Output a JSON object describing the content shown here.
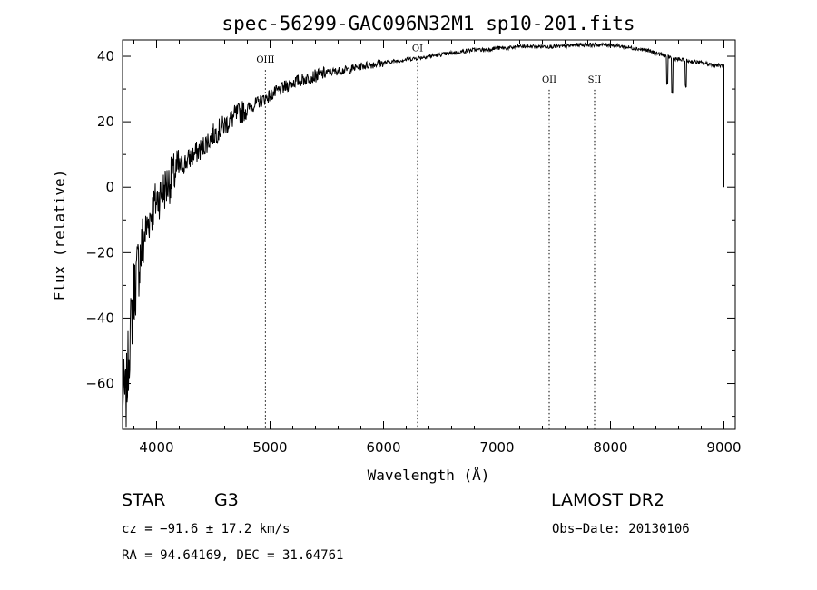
{
  "chart_data": {
    "type": "line",
    "title": "spec-56299-GAC096N32M1_sp10-201.fits",
    "xlabel": "Wavelength (Å)",
    "ylabel": "Flux (relative)",
    "xlim": [
      3700,
      9100
    ],
    "ylim": [
      -74,
      45
    ],
    "xticks": [
      4000,
      5000,
      6000,
      7000,
      8000,
      9000
    ],
    "xtick_labels": [
      "4000",
      "5000",
      "6000",
      "7000",
      "8000",
      "9000"
    ],
    "yticks": [
      -60,
      -40,
      -20,
      0,
      20,
      40
    ],
    "ytick_labels": [
      "−60",
      "−40",
      "−20",
      "0",
      "20",
      "40"
    ],
    "grid": false,
    "series": [
      {
        "x": [
          3700,
          3730,
          3760,
          3800,
          3850,
          3900,
          3950,
          4000,
          4100,
          4200,
          4300,
          4400,
          4500,
          4600,
          4700,
          4800,
          4900,
          5000,
          5100,
          5200,
          5300,
          5400,
          5500,
          5600,
          5700,
          5800,
          5900,
          6000,
          6100,
          6200,
          6300,
          6400,
          6500,
          6600,
          6700,
          6800,
          6900,
          7000,
          7100,
          7200,
          7300,
          7400,
          7500,
          7600,
          7700,
          7800,
          7900,
          8000,
          8100,
          8200,
          8300,
          8400,
          8500,
          8600,
          8700,
          8800,
          8900,
          9000
        ],
        "y": [
          -62,
          -65,
          -48,
          -32,
          -22,
          -14,
          -8,
          -4,
          1,
          6,
          9,
          12,
          16,
          19,
          22,
          24,
          26,
          28,
          30,
          32,
          33,
          34,
          35,
          35.5,
          36,
          37,
          37.5,
          38,
          38.5,
          39,
          39.5,
          40,
          40.5,
          41,
          41.5,
          42,
          42,
          42.5,
          42.5,
          43,
          43,
          43,
          43,
          43,
          43.5,
          43.5,
          43.5,
          43.5,
          43,
          42.5,
          42,
          41,
          40,
          39,
          38.5,
          38,
          37.5,
          37
        ]
      }
    ],
    "annotations": [
      {
        "label": "OIII",
        "x": 4959,
        "label_y": 38
      },
      {
        "label": "OI",
        "x": 6300,
        "label_y": 41.5
      },
      {
        "label": "OII",
        "x": 7460,
        "label_y": 32
      },
      {
        "label": "SII",
        "x": 7860,
        "label_y": 32
      }
    ]
  },
  "info": {
    "class": "STAR",
    "subclass": "G3",
    "survey": "LAMOST DR2",
    "cz": "cz = −91.6 ± 17.2 km/s",
    "obs_date": "Obs−Date: 20130106",
    "coords": "RA =  94.64169, DEC =  31.64761"
  }
}
